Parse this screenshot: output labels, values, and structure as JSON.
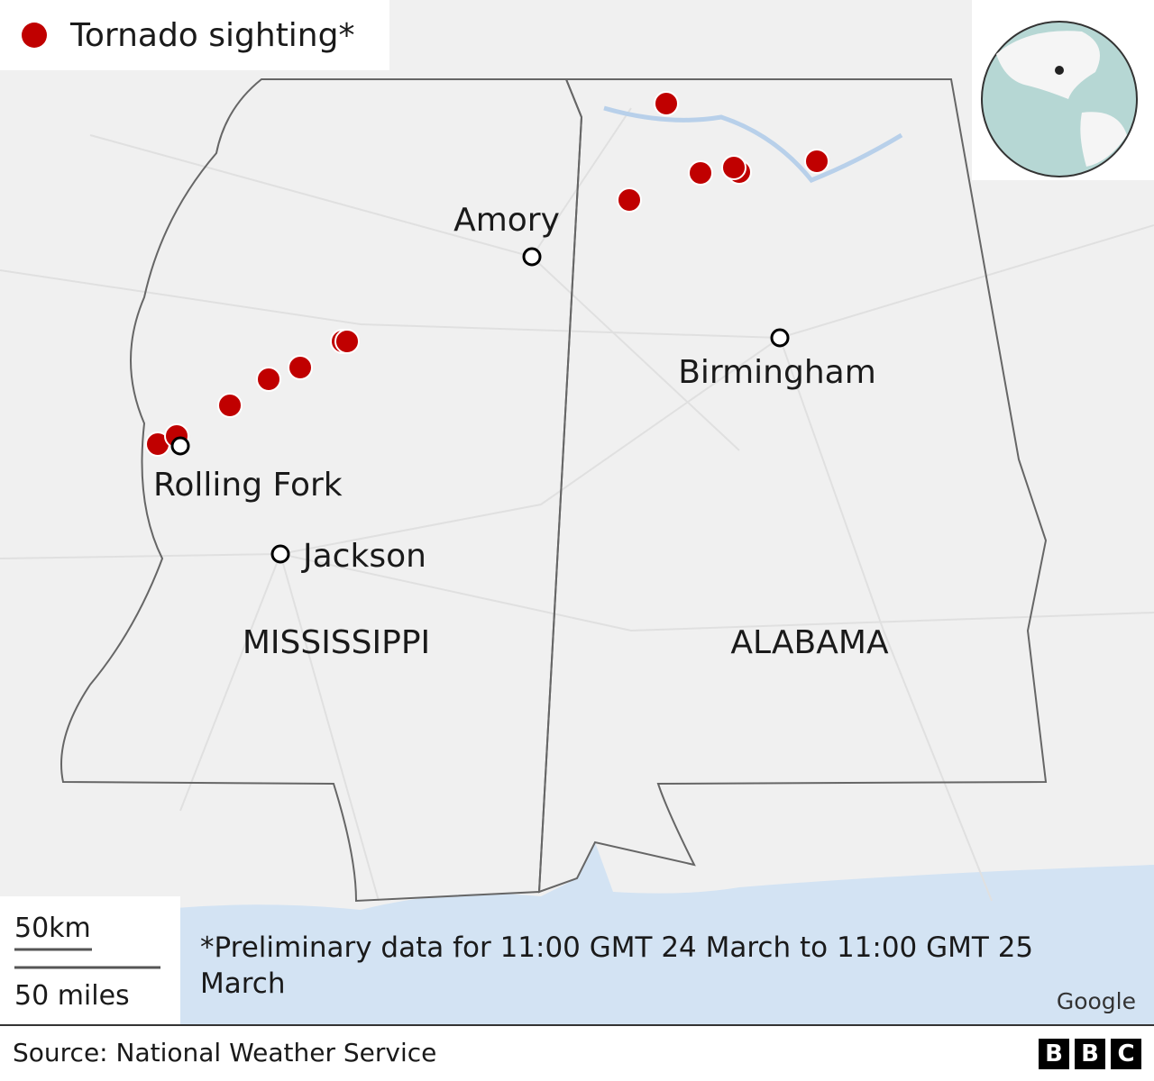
{
  "legend": {
    "label": "Tornado sighting*"
  },
  "cities": [
    {
      "label": "Amory"
    },
    {
      "label": "Birmingham"
    },
    {
      "label": "Rolling Fork"
    },
    {
      "label": "Jackson"
    }
  ],
  "states": [
    {
      "label": "MISSISSIPPI"
    },
    {
      "label": "ALABAMA"
    }
  ],
  "scale": {
    "km": "50km",
    "miles": "50 miles"
  },
  "footnote": "*Preliminary data for 11:00 GMT 24 March to 11:00 GMT 25 March",
  "attribution": "Google",
  "footer": {
    "source": "Source: National Weather Service",
    "logo": [
      "B",
      "B",
      "C"
    ]
  }
}
